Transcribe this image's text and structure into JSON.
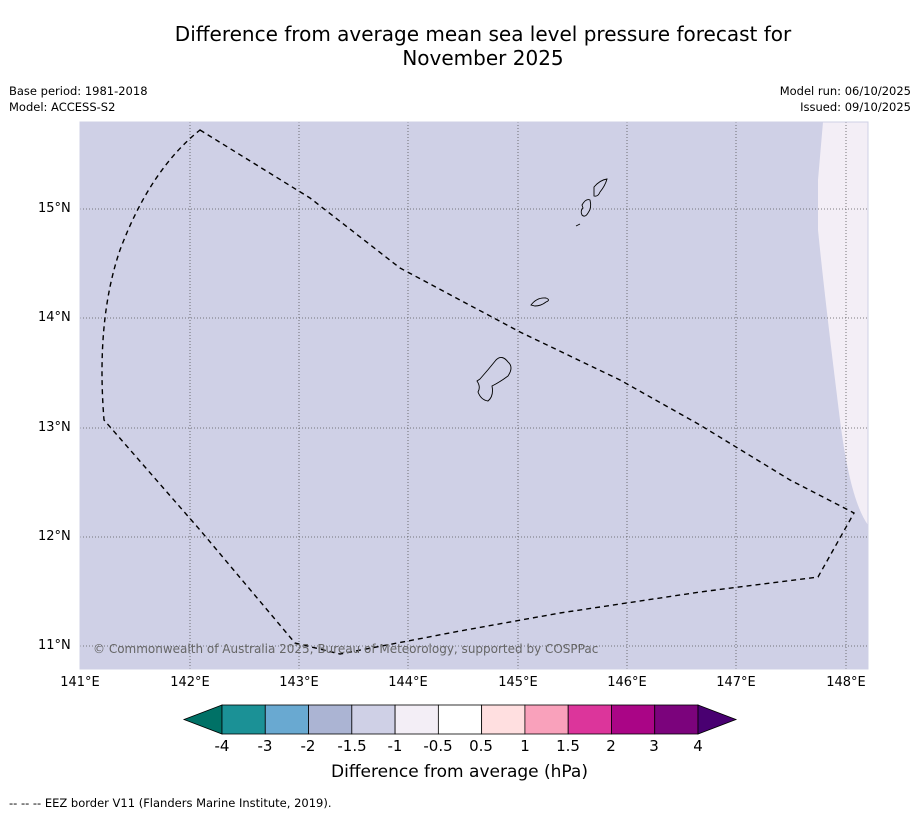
{
  "title_line1": "Difference from average mean sea level pressure forecast for",
  "title_line2": "November 2025",
  "base_period": "Base period: 1981-2018",
  "model": "Model: ACCESS-S2",
  "model_run": "Model run: 06/10/2025",
  "issued": "Issued: 09/10/2025",
  "copyright": "© Commonwealth of Australia 2025, Bureau of Meteorology, supported by COSPPac",
  "footer": "--  --  -- EEZ border V11 (Flanders Marine Institute, 2019).",
  "map": {
    "lat_labels": [
      "15°N",
      "14°N",
      "13°N",
      "12°N",
      "11°N"
    ],
    "lon_labels": [
      "141°E",
      "142°E",
      "143°E",
      "144°E",
      "145°E",
      "146°E",
      "147°E",
      "148°E"
    ],
    "background_color": "#cfd0e6",
    "east_band_color": "#f3eef6"
  },
  "colorbar": {
    "label": "Difference from average (hPa)",
    "ticks": [
      "-4",
      "-3",
      "-2",
      "-1.5",
      "-1",
      "-0.5",
      "0.5",
      "1",
      "1.5",
      "2",
      "3",
      "4"
    ],
    "colors": [
      "#1b9196",
      "#69a9d1",
      "#abb4d3",
      "#cfd0e6",
      "#f3eef6",
      "#ffffff",
      "#ffdfe0",
      "#f9a1bb",
      "#dc359b",
      "#aa0586",
      "#7b037c"
    ],
    "low_extend": "#007166",
    "high_extend": "#490071"
  }
}
